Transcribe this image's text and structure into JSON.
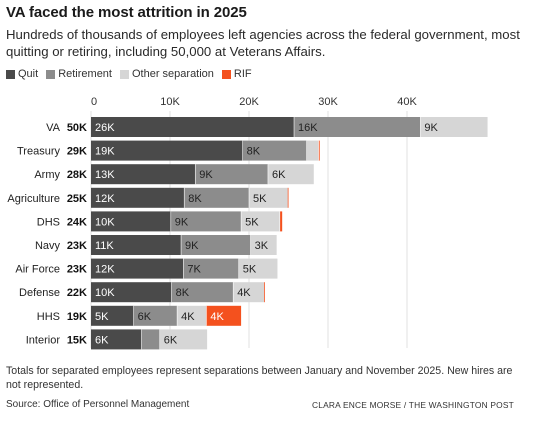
{
  "title": "VA faced the most attrition in 2025",
  "subtitle": "Hundreds of thousands of employees left agencies across the federal government, most quitting or retiring, including 50,000 at Veterans Affairs.",
  "footnote": "Totals for separated employees represent separations between January and November 2025. New hires are not represented.",
  "source": "Source: Office of Personnel Management",
  "credit": "CLARA ENCE MORSE / THE WASHINGTON POST",
  "colors": {
    "quit": "#4a4a4a",
    "retirement": "#8c8c8c",
    "other": "#d6d6d6",
    "rif": "#f4511e"
  },
  "chart_data": {
    "type": "bar",
    "orientation": "horizontal",
    "stacked": true,
    "xlim": [
      0,
      50000
    ],
    "xticks": [
      0,
      10000,
      20000,
      30000,
      40000
    ],
    "xtick_labels": [
      "0",
      "10K",
      "20K",
      "30K",
      "40K"
    ],
    "legend_position": "top-left",
    "categories": [
      "VA",
      "Treasury",
      "Army",
      "Agriculture",
      "DHS",
      "Navy",
      "Air Force",
      "Defense",
      "HHS",
      "Interior"
    ],
    "totals": [
      "50K",
      "29K",
      "28K",
      "25K",
      "24K",
      "23K",
      "23K",
      "22K",
      "19K",
      "15K"
    ],
    "series": [
      {
        "name": "Quit",
        "color_key": "quit",
        "values": [
          25700,
          19200,
          13200,
          11800,
          10100,
          11400,
          11700,
          10200,
          5400,
          6400
        ],
        "labels": [
          "26K",
          "19K",
          "13K",
          "12K",
          "10K",
          "11K",
          "12K",
          "10K",
          "5K",
          "6K"
        ]
      },
      {
        "name": "Retirement",
        "color_key": "retirement",
        "values": [
          16000,
          8100,
          9200,
          8200,
          8900,
          8800,
          7000,
          7800,
          5500,
          2300
        ],
        "labels": [
          "16K",
          "8K",
          "9K",
          "8K",
          "9K",
          "9K",
          "7K",
          "8K",
          "6K",
          ""
        ]
      },
      {
        "name": "Other separation",
        "color_key": "other",
        "values": [
          8500,
          1500,
          5800,
          4900,
          4900,
          3300,
          4900,
          3900,
          3700,
          6000
        ],
        "labels": [
          "9K",
          "",
          "6K",
          "5K",
          "5K",
          "3K",
          "5K",
          "4K",
          "4K",
          "6K"
        ]
      },
      {
        "name": "RIF",
        "color_key": "rif",
        "values": [
          0,
          150,
          0,
          100,
          300,
          0,
          0,
          100,
          4400,
          0
        ],
        "labels": [
          "",
          "",
          "",
          "",
          "",
          "",
          "",
          "",
          "4K",
          ""
        ]
      }
    ]
  }
}
